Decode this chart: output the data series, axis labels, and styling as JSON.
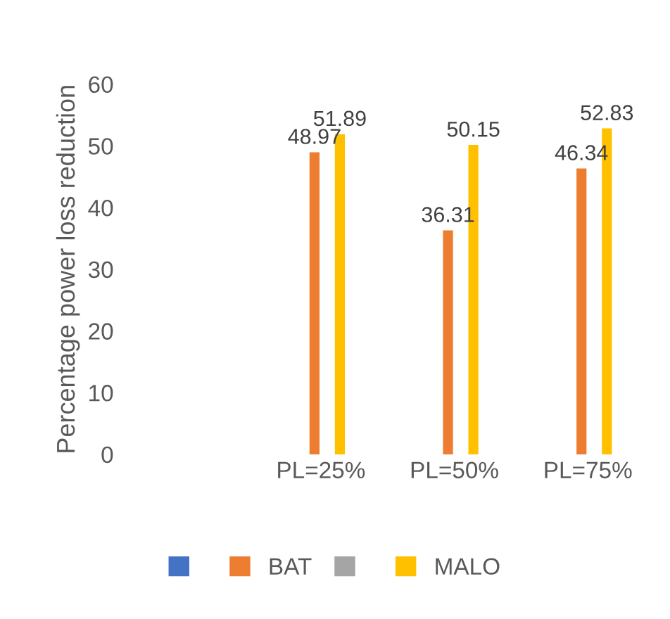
{
  "chart_data": {
    "type": "bar",
    "ylabel": "Percentage power loss reduction",
    "categories": [
      null,
      "PL=25%",
      "PL=50%",
      "PL=75%"
    ],
    "series": [
      {
        "color": "#4472c4",
        "values": [
          null,
          null,
          null,
          null
        ]
      },
      {
        "name": "BAT",
        "color": "#ed7d31",
        "values": [
          null,
          48.97,
          36.31,
          46.34
        ]
      },
      {
        "color": "#a5a5a5",
        "values": [
          null,
          null,
          null,
          null
        ]
      },
      {
        "name": "MALO",
        "color": "#ffc000",
        "values": [
          null,
          51.89,
          50.15,
          52.83
        ]
      }
    ],
    "ylim": [
      0,
      60
    ],
    "yticks": [
      0,
      10,
      20,
      30,
      40,
      50,
      60
    ],
    "data_labels": true,
    "grid": false,
    "legend": "bottom"
  }
}
